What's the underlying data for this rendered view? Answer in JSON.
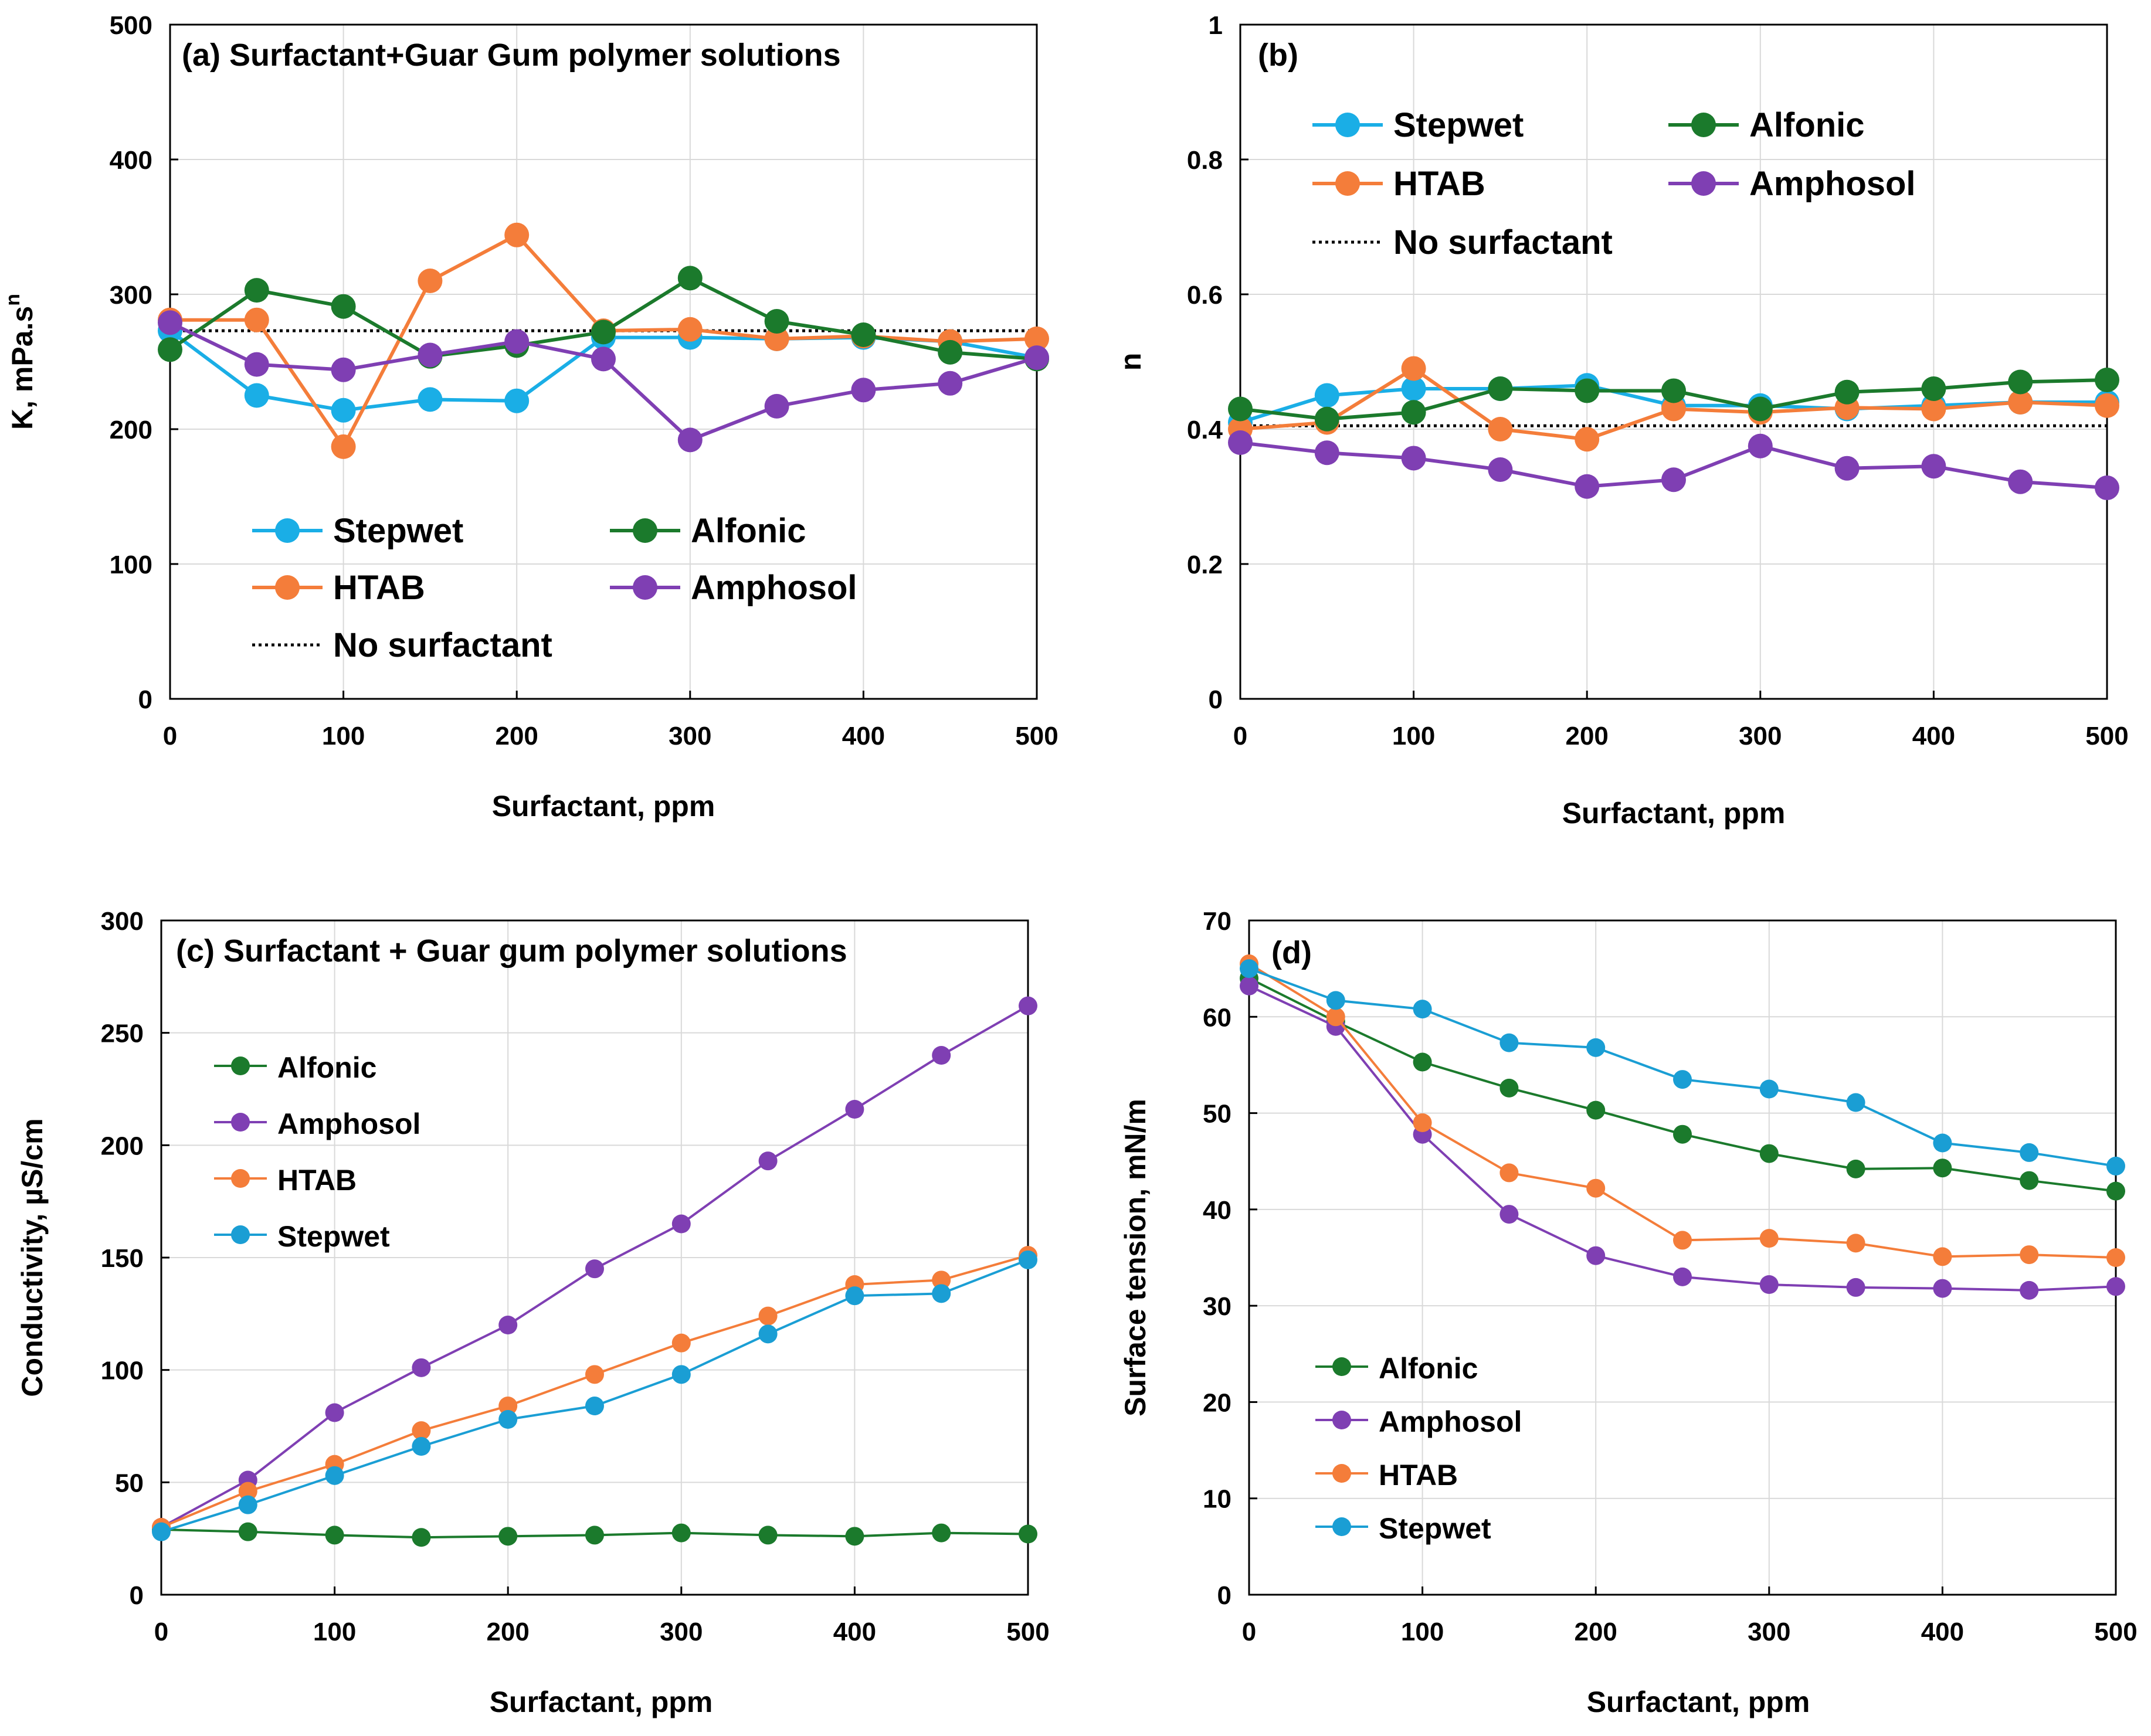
{
  "colors": {
    "Stepwet_ab": "#1aaee6",
    "Stepwet_cd": "#1a9ed4",
    "Alfonic": "#1b7a2c",
    "HTAB": "#f47d3a",
    "Amphosol": "#7f3fb3",
    "grid": "#d9d9d9"
  },
  "chart_data": [
    {
      "type": "line",
      "title": "(a)  Surfactant+Guar Gum polymer solutions",
      "xlabel": "Surfactant, ppm",
      "ylabel": "K, mPa.s",
      "ylabel_sup": "n",
      "xlim": [
        0,
        500
      ],
      "ylim": [
        0,
        500
      ],
      "xticks": [
        0,
        100,
        200,
        300,
        400,
        500
      ],
      "yticks": [
        0,
        100,
        200,
        300,
        400,
        500
      ],
      "x": [
        0,
        50,
        100,
        150,
        200,
        250,
        300,
        350,
        400,
        450,
        500
      ],
      "series": [
        {
          "name": "Stepwet",
          "color_key": "Stepwet_ab",
          "values": [
            273,
            225,
            214,
            222,
            221,
            268,
            268,
            267,
            268,
            265,
            253
          ]
        },
        {
          "name": "HTAB",
          "color_key": "HTAB",
          "values": [
            281,
            281,
            187,
            310,
            344,
            273,
            274,
            267,
            269,
            265,
            267
          ]
        },
        {
          "name": "Alfonic",
          "color_key": "Alfonic",
          "values": [
            259,
            303,
            291,
            254,
            262,
            272,
            312,
            280,
            270,
            257,
            252
          ]
        },
        {
          "name": "Amphosol",
          "color_key": "Amphosol",
          "values": [
            279,
            248,
            244,
            255,
            265,
            252,
            192,
            217,
            229,
            234,
            253
          ]
        }
      ],
      "reference": {
        "name": "No surfactant",
        "value": 273
      },
      "legend": "inside-bottom"
    },
    {
      "type": "line",
      "title": "(b)",
      "xlabel": "Surfactant, ppm",
      "ylabel": "n",
      "xlim": [
        0,
        500
      ],
      "ylim": [
        0,
        1
      ],
      "xticks": [
        0,
        100,
        200,
        300,
        400,
        500
      ],
      "yticks": [
        0,
        0.2,
        0.4,
        0.6,
        0.8,
        1
      ],
      "ytick_labels": [
        "0",
        "0.2",
        "0.4",
        "0.6",
        "0.8",
        "1"
      ],
      "x": [
        0,
        50,
        100,
        150,
        200,
        250,
        300,
        350,
        400,
        450,
        500
      ],
      "series": [
        {
          "name": "Stepwet",
          "color_key": "Stepwet_ab",
          "values": [
            0.41,
            0.45,
            0.46,
            0.46,
            0.465,
            0.435,
            0.435,
            0.43,
            0.435,
            0.44,
            0.44
          ]
        },
        {
          "name": "HTAB",
          "color_key": "HTAB",
          "values": [
            0.4,
            0.41,
            0.49,
            0.4,
            0.385,
            0.43,
            0.425,
            0.432,
            0.43,
            0.44,
            0.435
          ]
        },
        {
          "name": "Alfonic",
          "color_key": "Alfonic",
          "values": [
            0.43,
            0.415,
            0.425,
            0.46,
            0.457,
            0.457,
            0.43,
            0.455,
            0.46,
            0.47,
            0.473
          ]
        },
        {
          "name": "Amphosol",
          "color_key": "Amphosol",
          "values": [
            0.38,
            0.365,
            0.357,
            0.34,
            0.315,
            0.325,
            0.375,
            0.342,
            0.345,
            0.322,
            0.313
          ]
        }
      ],
      "reference": {
        "name": "No surfactant",
        "value": 0.405
      },
      "legend": "inside-top"
    },
    {
      "type": "line",
      "title": "(c)   Surfactant + Guar gum polymer solutions",
      "xlabel": "Surfactant, ppm",
      "ylabel": "Conductivity, µS/cm",
      "xlim": [
        0,
        500
      ],
      "ylim": [
        0,
        300
      ],
      "xticks": [
        0,
        100,
        200,
        300,
        400,
        500
      ],
      "yticks": [
        0,
        50,
        100,
        150,
        200,
        250,
        300
      ],
      "x": [
        0,
        50,
        100,
        150,
        200,
        250,
        300,
        350,
        400,
        450,
        500
      ],
      "series": [
        {
          "name": "Alfonic",
          "color_key": "Alfonic",
          "values": [
            29,
            28,
            26.5,
            25.5,
            26,
            26.5,
            27.5,
            26.5,
            26,
            27.5,
            27
          ]
        },
        {
          "name": "Amphosol",
          "color_key": "Amphosol",
          "values": [
            30,
            51,
            81,
            101,
            120,
            145,
            165,
            193,
            216,
            240,
            262
          ]
        },
        {
          "name": "HTAB",
          "color_key": "HTAB",
          "values": [
            30,
            46,
            58,
            73,
            84,
            98,
            112,
            124,
            138,
            140,
            151
          ]
        },
        {
          "name": "Stepwet",
          "color_key": "Stepwet_cd",
          "values": [
            28,
            40,
            53,
            66,
            78,
            84,
            98,
            116,
            133,
            134,
            149
          ]
        }
      ],
      "legend": "inside-left"
    },
    {
      "type": "line",
      "title": "(d)",
      "xlabel": "Surfactant, ppm",
      "ylabel": "Surface tension, mN/m",
      "xlim": [
        0,
        500
      ],
      "ylim": [
        0,
        70
      ],
      "xticks": [
        0,
        100,
        200,
        300,
        400,
        500
      ],
      "yticks": [
        0,
        10,
        20,
        30,
        40,
        50,
        60,
        70
      ],
      "x": [
        0,
        50,
        100,
        150,
        200,
        250,
        300,
        350,
        400,
        450,
        500
      ],
      "series": [
        {
          "name": "Alfonic",
          "color_key": "Alfonic",
          "values": [
            64,
            59.5,
            55.3,
            52.6,
            50.3,
            47.8,
            45.8,
            44.2,
            44.3,
            43,
            41.9
          ]
        },
        {
          "name": "Amphosol",
          "color_key": "Amphosol",
          "values": [
            63.2,
            59,
            47.8,
            39.5,
            35.2,
            33,
            32.2,
            31.9,
            31.8,
            31.6,
            32
          ]
        },
        {
          "name": "HTAB",
          "color_key": "HTAB",
          "values": [
            65.5,
            60,
            49,
            43.8,
            42.2,
            36.8,
            37,
            36.5,
            35.1,
            35.3,
            35
          ]
        },
        {
          "name": "Stepwet",
          "color_key": "Stepwet_cd",
          "values": [
            65,
            61.7,
            60.8,
            57.3,
            56.8,
            53.5,
            52.5,
            51.1,
            46.9,
            45.9,
            44.5
          ]
        }
      ],
      "legend": "inside-bottom-left"
    }
  ]
}
